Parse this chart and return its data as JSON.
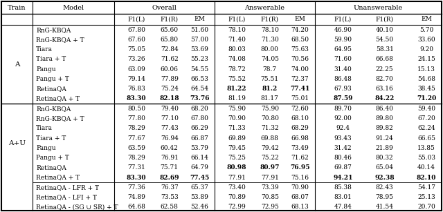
{
  "models_A": [
    "RnG-KBQA",
    "RnG-KBQA + T",
    "Tiara",
    "Tiara + T",
    "Pangu",
    "Pangu + T",
    "RetinaQA",
    "RetinaQA + T"
  ],
  "models_AU": [
    "RnG-KBQA",
    "RnG-KBQA + T",
    "Tiara",
    "Tiara + T",
    "Pangu",
    "Pangu + T",
    "RetinaQA",
    "RetinaQA + T",
    "RetinaQA - LFR + T",
    "RetinaQA - LFI + T",
    "RetinaQA - (SG ∪ SR) + T"
  ],
  "val_strs_A": [
    [
      [
        "67.80",
        "65.60",
        "51.60"
      ],
      [
        "78.10",
        "78.10",
        "74.20"
      ],
      [
        "46.90",
        "40.10",
        "5.70"
      ]
    ],
    [
      [
        "67.60",
        "65.80",
        "57.00"
      ],
      [
        "71.40",
        "71.30",
        "68.50"
      ],
      [
        "59.90",
        "54.50",
        "33.60"
      ]
    ],
    [
      [
        "75.05",
        "72.84",
        "53.69"
      ],
      [
        "80.03",
        "80.00",
        "75.63"
      ],
      [
        "64.95",
        "58.31",
        "9.20"
      ]
    ],
    [
      [
        "73.26",
        "71.62",
        "55.23"
      ],
      [
        "74.08",
        "74.05",
        "70.56"
      ],
      [
        "71.60",
        "66.68",
        "24.15"
      ]
    ],
    [
      [
        "63.09",
        "60.06",
        "54.55"
      ],
      [
        "78.72",
        "78.7",
        "74.00"
      ],
      [
        "31.40",
        "22.25",
        "15.13"
      ]
    ],
    [
      [
        "79.14",
        "77.89",
        "66.53"
      ],
      [
        "75.52",
        "75.51",
        "72.37"
      ],
      [
        "86.48",
        "82.70",
        "54.68"
      ]
    ],
    [
      [
        "76.83",
        "75.24",
        "64.54"
      ],
      [
        "81.22",
        "81.2",
        "77.41"
      ],
      [
        "67.93",
        "63.16",
        "38.45"
      ]
    ],
    [
      [
        "83.30",
        "82.18",
        "73.76"
      ],
      [
        "81.19",
        "81.17",
        "75.01"
      ],
      [
        "87.59",
        "84.22",
        "71.20"
      ]
    ]
  ],
  "bold_A": [
    [
      false,
      false,
      false
    ],
    [
      false,
      false,
      false
    ],
    [
      false,
      false,
      false
    ],
    [
      false,
      false,
      false
    ],
    [
      false,
      false,
      false
    ],
    [
      false,
      false,
      false
    ],
    [
      false,
      true,
      false
    ],
    [
      true,
      false,
      true
    ]
  ],
  "val_strs_AU": [
    [
      [
        "80.50",
        "79.40",
        "68.20"
      ],
      [
        "75.90",
        "75.90",
        "72.60"
      ],
      [
        "89.70",
        "86.40",
        "59.40"
      ]
    ],
    [
      [
        "77.80",
        "77.10",
        "67.80"
      ],
      [
        "70.90",
        "70.80",
        "68.10"
      ],
      [
        "92.00",
        "89.80",
        "67.20"
      ]
    ],
    [
      [
        "78.29",
        "77.43",
        "66.29"
      ],
      [
        "71.33",
        "71.32",
        "68.29"
      ],
      [
        "92.4",
        "89.82",
        "62.24"
      ]
    ],
    [
      [
        "77.67",
        "76.94",
        "66.87"
      ],
      [
        "69.89",
        "69.88",
        "66.98"
      ],
      [
        "93.43",
        "91.24",
        "66.65"
      ]
    ],
    [
      [
        "63.59",
        "60.42",
        "53.79"
      ],
      [
        "79.45",
        "79.42",
        "73.49"
      ],
      [
        "31.42",
        "21.89",
        "13.85"
      ]
    ],
    [
      [
        "78.29",
        "76.91",
        "66.14"
      ],
      [
        "75.25",
        "75.22",
        "71.62"
      ],
      [
        "80.46",
        "80.32",
        "55.03"
      ]
    ],
    [
      [
        "77.31",
        "75.71",
        "64.79"
      ],
      [
        "80.98",
        "80.97",
        "76.95"
      ],
      [
        "69.87",
        "65.04",
        "40.14"
      ]
    ],
    [
      [
        "83.30",
        "82.69",
        "77.45"
      ],
      [
        "77.91",
        "77.91",
        "75.16"
      ],
      [
        "94.21",
        "92.38",
        "82.10"
      ]
    ],
    [
      [
        "77.36",
        "76.37",
        "65.37"
      ],
      [
        "73.40",
        "73.39",
        "70.90"
      ],
      [
        "85.38",
        "82.43",
        "54.17"
      ]
    ],
    [
      [
        "74.89",
        "73.53",
        "53.89"
      ],
      [
        "70.89",
        "70.85",
        "68.07"
      ],
      [
        "83.01",
        "78.95",
        "25.13"
      ]
    ],
    [
      [
        "64.68",
        "62.58",
        "52.46"
      ],
      [
        "72.99",
        "72.95",
        "68.13"
      ],
      [
        "47.84",
        "41.54",
        "20.70"
      ]
    ]
  ],
  "bold_AU": [
    [
      false,
      false,
      false
    ],
    [
      false,
      false,
      false
    ],
    [
      false,
      false,
      false
    ],
    [
      false,
      false,
      false
    ],
    [
      false,
      false,
      false
    ],
    [
      false,
      false,
      false
    ],
    [
      false,
      true,
      false
    ],
    [
      true,
      false,
      true
    ],
    [
      false,
      false,
      false
    ],
    [
      false,
      false,
      false
    ],
    [
      false,
      false,
      false
    ]
  ],
  "font_size": 6.5,
  "header_font_size": 7.0
}
